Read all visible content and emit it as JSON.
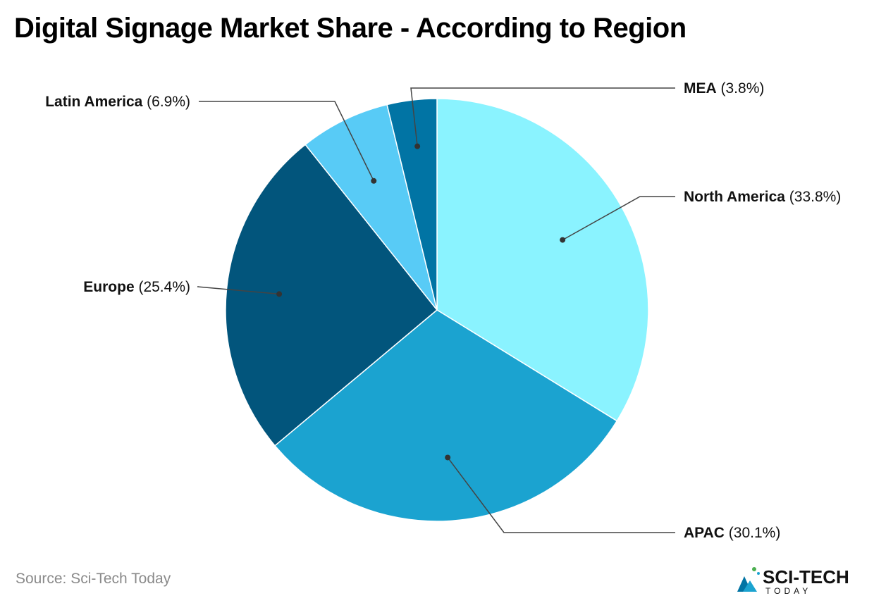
{
  "title": "Digital Signage Market Share - According to Region",
  "source": "Source: Sci-Tech Today",
  "logo": {
    "text": "SCI-TECH",
    "subtext": "TODAY"
  },
  "chart_data": {
    "type": "pie",
    "title": "Digital Signage Market Share - According to Region",
    "start_angle_deg": 0,
    "direction": "clockwise",
    "slices": [
      {
        "label": "North America",
        "value": 33.8,
        "value_label": "(33.8%)",
        "color": "#8af3ff"
      },
      {
        "label": "APAC",
        "value": 30.1,
        "value_label": "(30.1%)",
        "color": "#1ba3d0"
      },
      {
        "label": "Europe",
        "value": 25.4,
        "value_label": "(25.4%)",
        "color": "#02557c"
      },
      {
        "label": "Latin America",
        "value": 6.9,
        "value_label": "(6.9%)",
        "color": "#58cbf6"
      },
      {
        "label": "MEA",
        "value": 3.8,
        "value_label": "(3.8%)",
        "color": "#0174a4"
      }
    ]
  }
}
